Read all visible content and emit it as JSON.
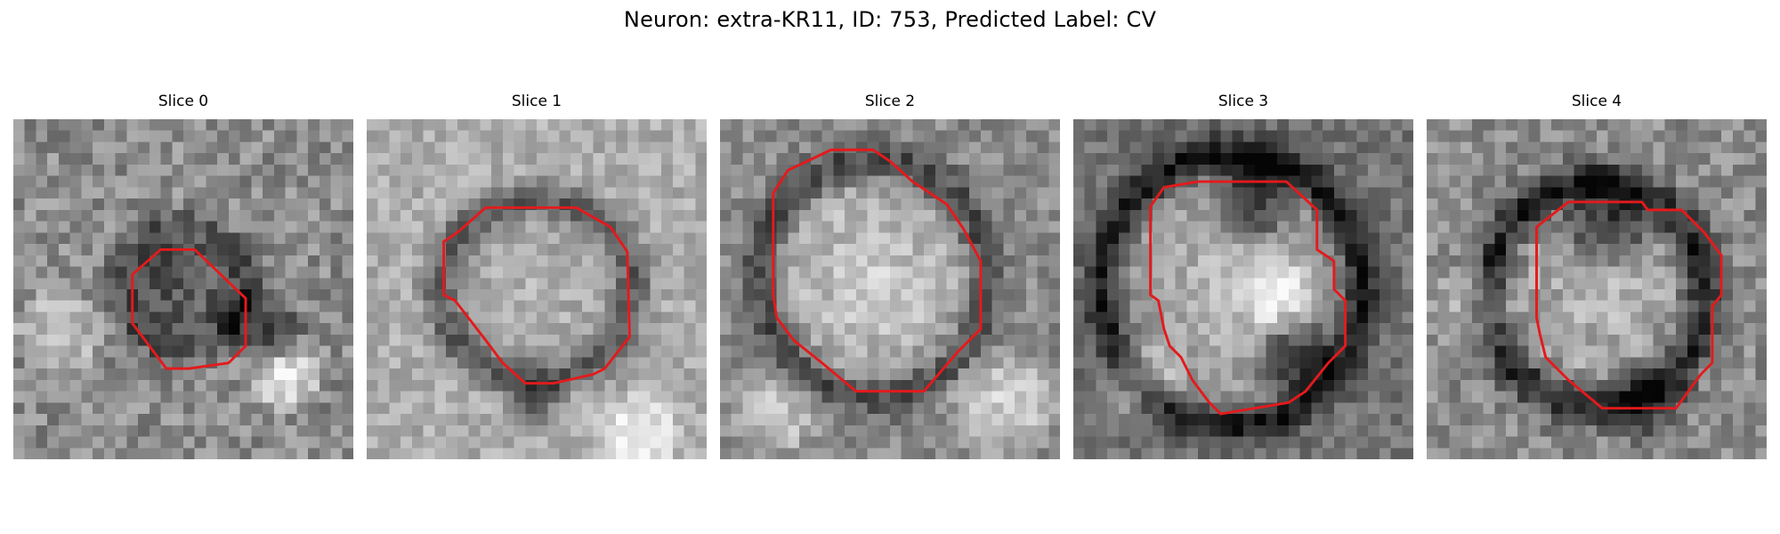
{
  "figure": {
    "title": "Neuron: extra-KR11, ID: 753, Predicted Label: CV"
  },
  "panels": [
    {
      "title": "Slice 0",
      "contour_color": "#e41a1c"
    },
    {
      "title": "Slice 1",
      "contour_color": "#e41a1c"
    },
    {
      "title": "Slice 2",
      "contour_color": "#e41a1c"
    },
    {
      "title": "Slice 3",
      "contour_color": "#e41a1c"
    },
    {
      "title": "Slice 4",
      "contour_color": "#e41a1c"
    }
  ]
}
